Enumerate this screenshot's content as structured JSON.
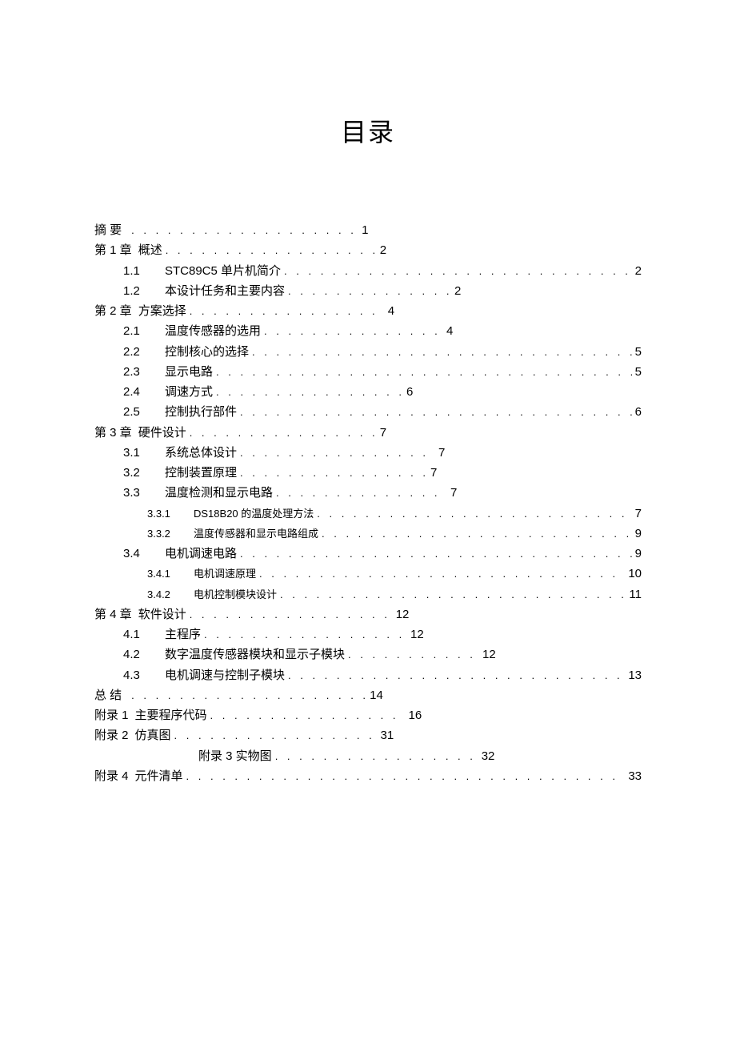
{
  "title": "目录",
  "entries": [
    {
      "level": 0,
      "num": "摘 要",
      "label": "",
      "page": "1",
      "short": true,
      "dotsWidth": 280
    },
    {
      "level": 0,
      "num": "第 1 章",
      "label": "概述",
      "page": "2",
      "short": true,
      "dotsWidth": 260
    },
    {
      "level": 1,
      "num": "1.1",
      "label": "STC89C5 单片机简介",
      "page": "2",
      "short": false
    },
    {
      "level": 1,
      "num": "1.2",
      "label": "本设计任务和主要内容",
      "page": "2",
      "short": true,
      "dotsWidth": 200
    },
    {
      "level": 0,
      "num": "第 2 章",
      "label": "方案选择",
      "page": "4",
      "short": true,
      "dotsWidth": 240
    },
    {
      "level": 1,
      "num": "2.1",
      "label": "温度传感器的选用",
      "page": "4",
      "short": true,
      "dotsWidth": 220
    },
    {
      "level": 1,
      "num": "2.2",
      "label": "控制核心的选择",
      "page": "5",
      "short": false
    },
    {
      "level": 1,
      "num": "2.3",
      "label": "显示电路",
      "page": "5",
      "short": false
    },
    {
      "level": 1,
      "num": "2.4",
      "label": "调速方式",
      "page": "6",
      "short": true,
      "dotsWidth": 230
    },
    {
      "level": 1,
      "num": "2.5",
      "label": "控制执行部件",
      "page": "6",
      "short": false
    },
    {
      "level": 0,
      "num": "第 3 章",
      "label": "硬件设计",
      "page": "7",
      "short": true,
      "dotsWidth": 230
    },
    {
      "level": 1,
      "num": "3.1",
      "label": "系统总体设计",
      "page": "7",
      "short": true,
      "dotsWidth": 240
    },
    {
      "level": 1,
      "num": "3.2",
      "label": "控制装置原理",
      "page": "7",
      "short": true,
      "dotsWidth": 230
    },
    {
      "level": 1,
      "num": "3.3",
      "label": "温度检测和显示电路",
      "page": "7",
      "short": true,
      "dotsWidth": 210
    },
    {
      "level": 2,
      "num": "3.3.1",
      "label": "DS18B20 的温度处理方法",
      "page": "7",
      "short": false
    },
    {
      "level": 2,
      "num": "3.3.2",
      "label": "温度传感器和显示电路组成",
      "page": "9",
      "short": false
    },
    {
      "level": 1,
      "num": "3.4",
      "label": "电机调速电路",
      "page": "9",
      "short": false
    },
    {
      "level": 2,
      "num": "3.4.1",
      "label": "电机调速原理",
      "page": "10",
      "short": false
    },
    {
      "level": 2,
      "num": "3.4.2",
      "label": "电机控制模块设计",
      "page": "11",
      "short": false
    },
    {
      "level": 0,
      "num": "第 4 章",
      "label": "软件设计",
      "page": "12",
      "short": true,
      "dotsWidth": 250
    },
    {
      "level": 1,
      "num": "4.1",
      "label": "主程序",
      "page": "12",
      "short": true,
      "dotsWidth": 250
    },
    {
      "level": 1,
      "num": "4.2",
      "label": "数字温度传感器模块和显示子模块",
      "page": "12",
      "short": true,
      "dotsWidth": 160
    },
    {
      "level": 1,
      "num": "4.3",
      "label": "电机调速与控制子模块",
      "page": "13",
      "short": false
    },
    {
      "level": 0,
      "num": "总 结",
      "label": "",
      "page": "14",
      "short": true,
      "dotsWidth": 290
    },
    {
      "level": 0,
      "num": "附录 1",
      "label": "主要程序代码",
      "page": "16",
      "short": true,
      "dotsWidth": 240
    },
    {
      "level": 0,
      "num": "附录 2",
      "label": "仿真图",
      "page": "31",
      "short": true,
      "dotsWidth": 250
    },
    {
      "level": 0,
      "num": "",
      "label": "附录 3    实物图",
      "page": "32",
      "short": true,
      "dotsWidth": 250,
      "centered": true
    },
    {
      "level": 0,
      "num": "附录 4",
      "label": "元件清单",
      "page": "33",
      "short": false
    }
  ],
  "style": {
    "background": "#ffffff",
    "text_color": "#000000",
    "title_fontsize": 32,
    "body_fontsize": 15,
    "sub_fontsize": 13
  }
}
